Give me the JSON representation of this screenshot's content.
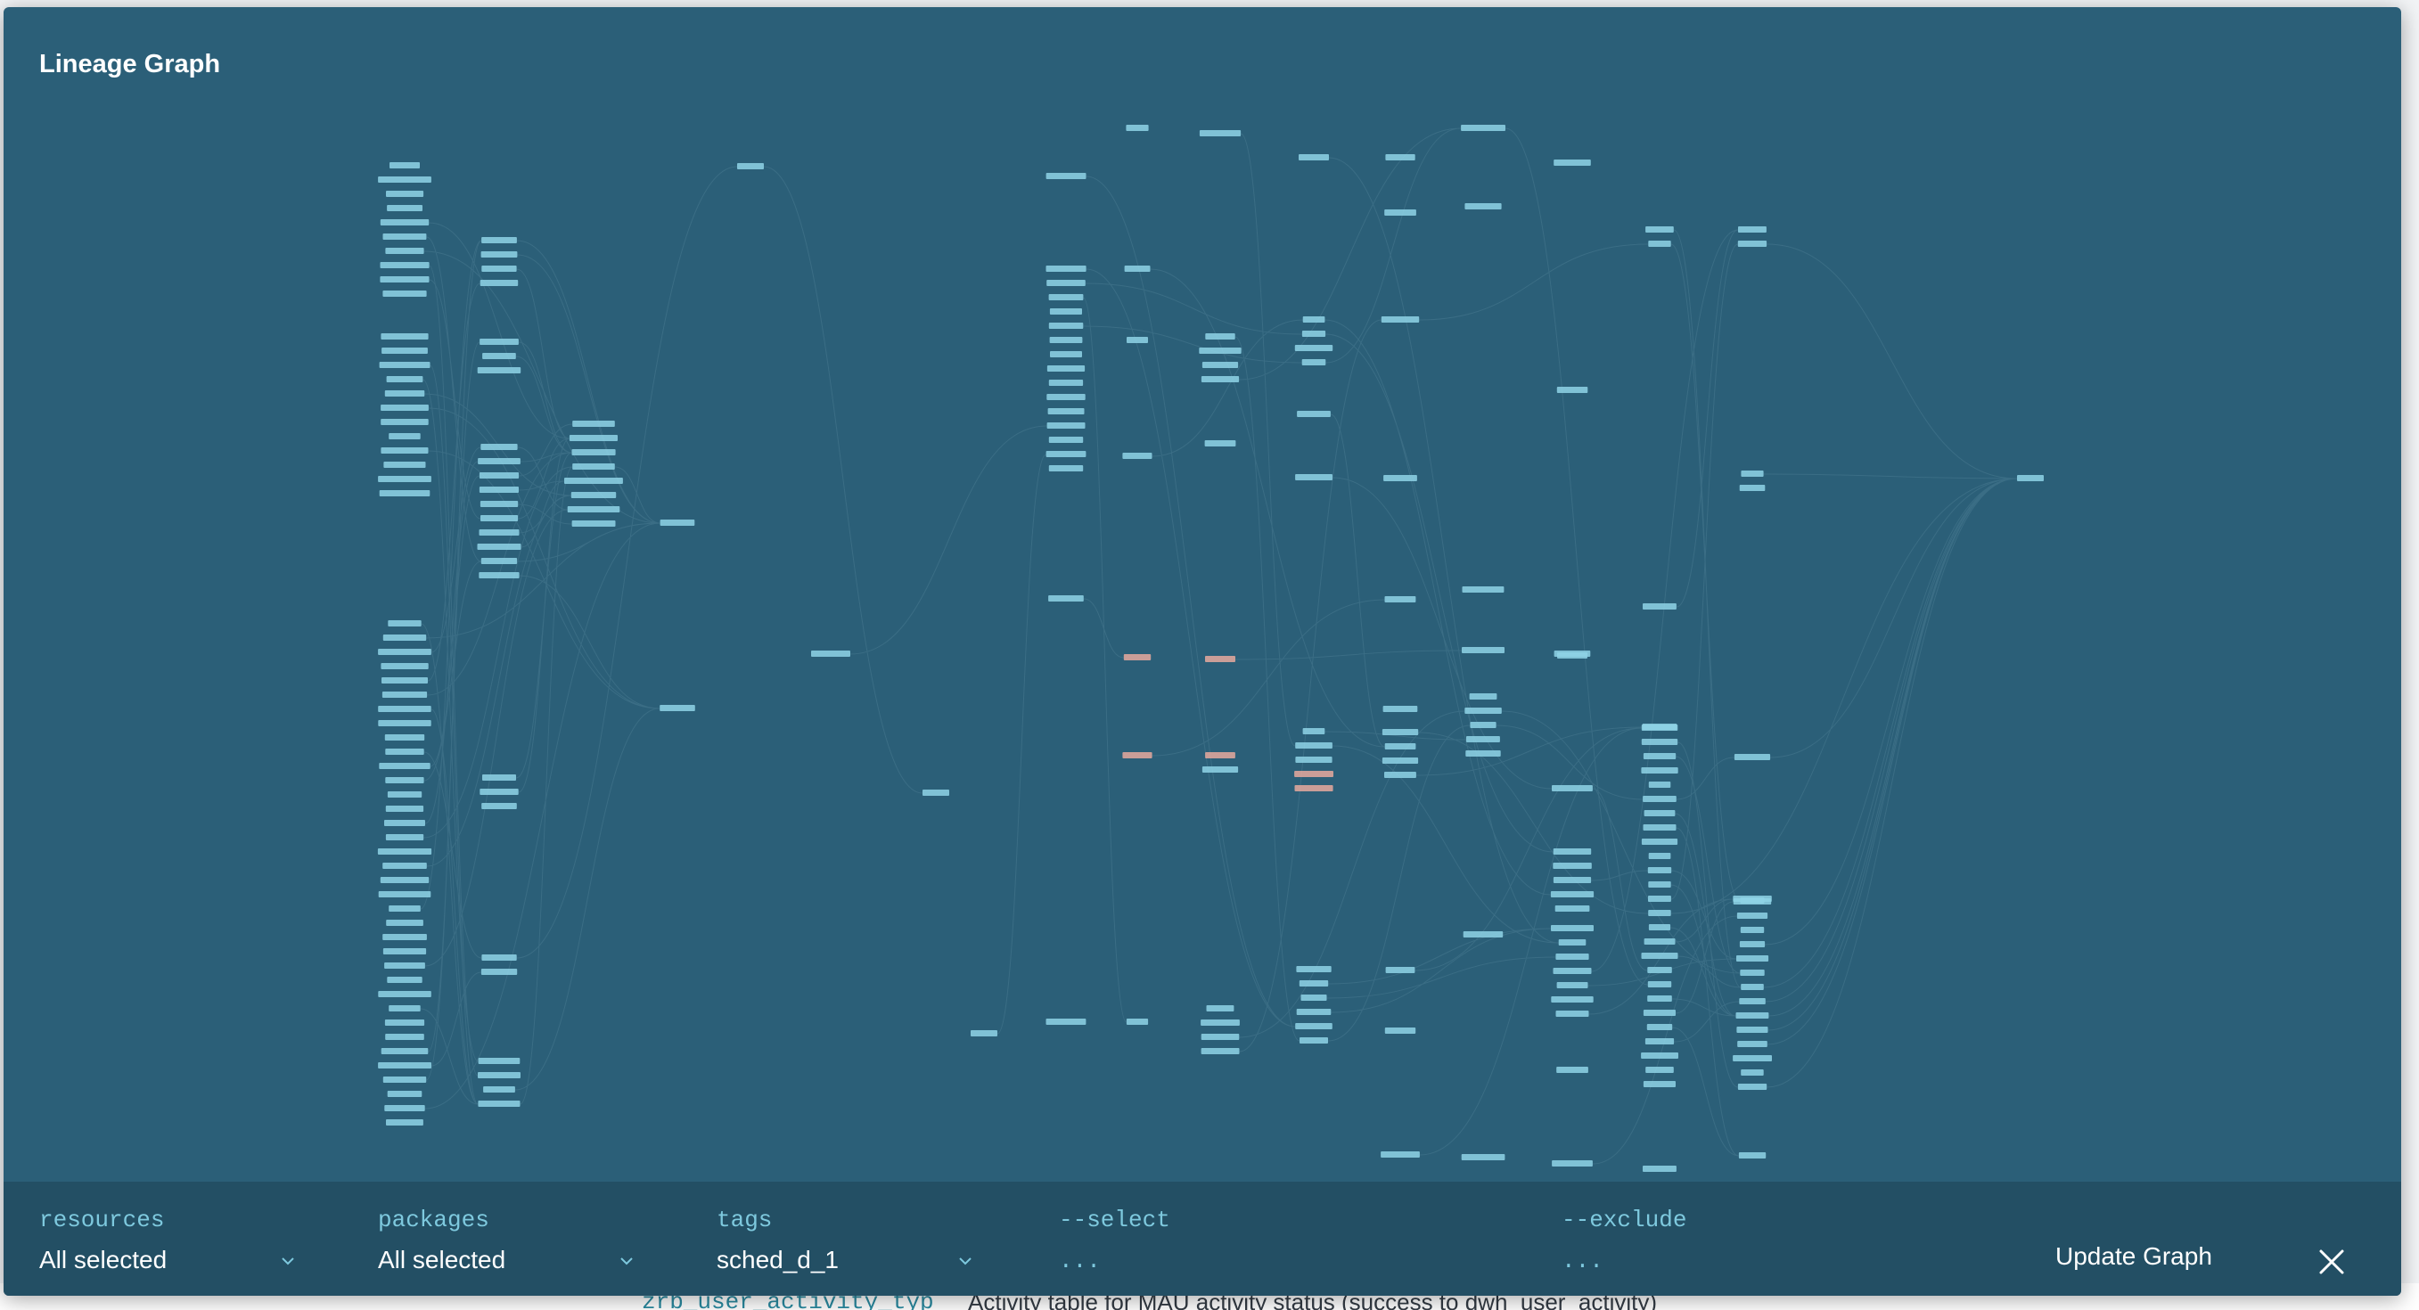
{
  "modal": {
    "title": "Lineage Graph"
  },
  "colors": {
    "modal_bg": "#2b5f78",
    "footer_bg": "#234f64",
    "node_fill": "#8fd4e6",
    "node_highlight": "#e6a99e",
    "edge": "#9cc9d6",
    "label_accent": "#7ec9de"
  },
  "filters": {
    "resources": {
      "label": "resources",
      "value": "All selected"
    },
    "packages": {
      "label": "packages",
      "value": "All selected"
    },
    "tags": {
      "label": "tags",
      "value": "sched_d_1"
    },
    "select": {
      "label": "--select",
      "value": "..."
    },
    "exclude": {
      "label": "--exclude",
      "value": "..."
    }
  },
  "actions": {
    "update_label": "Update Graph",
    "close_icon": "close-icon"
  },
  "background": {
    "model_name": "zrb_user_activity_typ",
    "model_description": "Activity table for MAU activity status (success to dwh_user_activity)"
  }
}
